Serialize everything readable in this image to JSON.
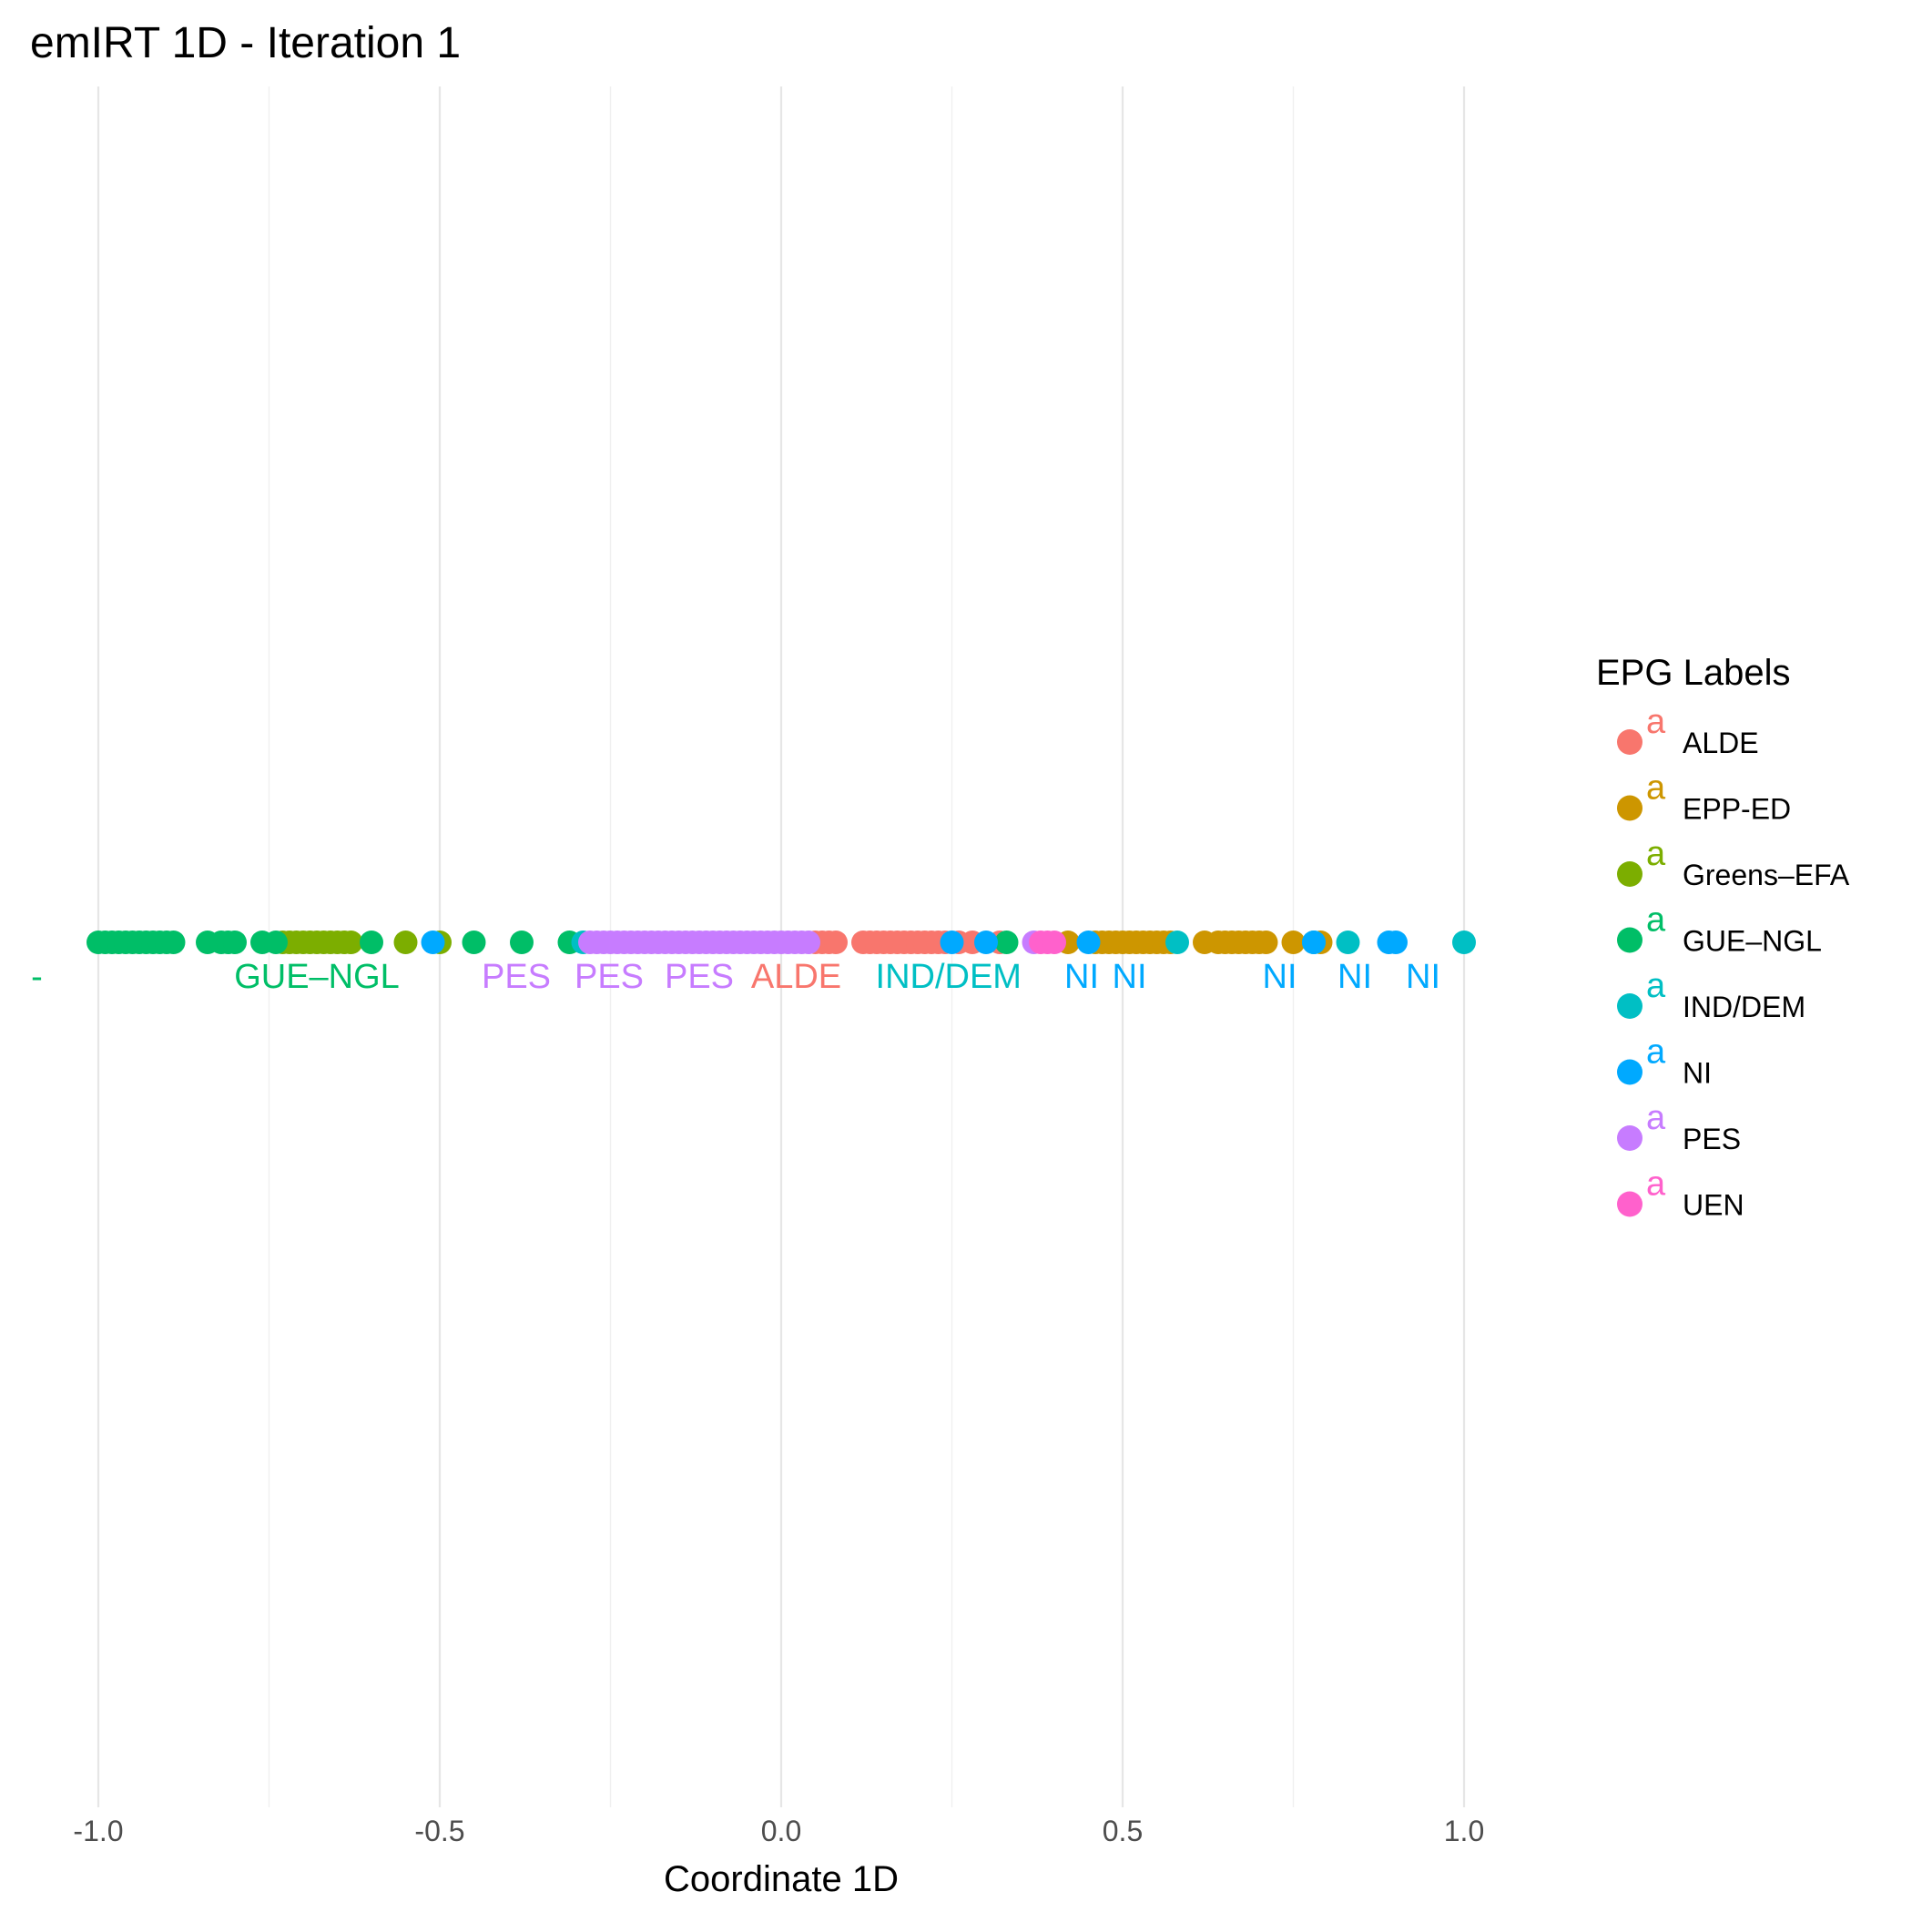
{
  "chart_data": {
    "type": "scatter",
    "title": "emIRT 1D - Iteration 1",
    "xlabel": "Coordinate 1D",
    "ylabel": "",
    "xlim": [
      -1.08,
      1.55
    ],
    "xticks": [
      -1.0,
      -0.5,
      0.0,
      0.5,
      1.0
    ],
    "xtick_labels": [
      "-1.0",
      "-0.5",
      "0.0",
      "0.5",
      "1.0"
    ],
    "grid": "vertical major and minor",
    "legend": {
      "title": "EPG Labels",
      "position": "right",
      "glyph": "a"
    },
    "series": [
      {
        "name": "ALDE",
        "color": "#F8766D",
        "x": [
          0.05,
          0.06,
          0.07,
          0.08,
          0.12,
          0.13,
          0.14,
          0.15,
          0.16,
          0.17,
          0.18,
          0.19,
          0.2,
          0.21,
          0.22,
          0.23,
          0.24,
          0.26,
          0.28,
          0.32
        ]
      },
      {
        "name": "EPP-ED",
        "color": "#CD9600",
        "x": [
          0.42,
          0.46,
          0.47,
          0.48,
          0.49,
          0.5,
          0.51,
          0.52,
          0.53,
          0.54,
          0.55,
          0.56,
          0.57,
          0.62,
          0.64,
          0.65,
          0.66,
          0.67,
          0.68,
          0.69,
          0.7,
          0.71,
          0.75,
          0.79
        ]
      },
      {
        "name": "Greens–EFA",
        "color": "#7CAE00",
        "x": [
          -0.73,
          -0.72,
          -0.71,
          -0.7,
          -0.69,
          -0.68,
          -0.67,
          -0.66,
          -0.65,
          -0.64,
          -0.63,
          -0.55,
          -0.5
        ]
      },
      {
        "name": "GUE–NGL",
        "color": "#00BE67",
        "x": [
          -1.0,
          -0.99,
          -0.98,
          -0.97,
          -0.96,
          -0.95,
          -0.94,
          -0.93,
          -0.92,
          -0.91,
          -0.9,
          -0.89,
          -0.84,
          -0.82,
          -0.81,
          -0.8,
          -0.76,
          -0.74,
          -0.6,
          -0.45,
          -0.38,
          -0.31,
          0.33
        ]
      },
      {
        "name": "IND/DEM",
        "color": "#00BFC4",
        "x": [
          -0.29,
          0.58,
          0.78,
          0.83,
          1.0
        ]
      },
      {
        "name": "NI",
        "color": "#00A9FF",
        "x": [
          -0.51,
          0.25,
          0.3,
          0.45,
          0.78,
          0.89,
          0.9
        ]
      },
      {
        "name": "PES",
        "color": "#C77CFF",
        "x": [
          -0.28,
          -0.27,
          -0.26,
          -0.25,
          -0.24,
          -0.23,
          -0.22,
          -0.21,
          -0.2,
          -0.19,
          -0.18,
          -0.17,
          -0.16,
          -0.15,
          -0.14,
          -0.13,
          -0.12,
          -0.11,
          -0.1,
          -0.09,
          -0.08,
          -0.07,
          -0.06,
          -0.05,
          -0.04,
          -0.03,
          -0.02,
          -0.01,
          0.0,
          0.01,
          0.02,
          0.03,
          0.04,
          0.37
        ]
      },
      {
        "name": "UEN",
        "color": "#FF61CC",
        "x": [
          0.38,
          0.39,
          0.4
        ]
      }
    ],
    "annotations": [
      {
        "text": "-",
        "x": -1.09,
        "color": "#00BE67"
      },
      {
        "text": "GUE–NGL",
        "x": -0.68,
        "color": "#00BE67"
      },
      {
        "text": "PES",
        "x": -0.388,
        "color": "#C77CFF"
      },
      {
        "text": "PES",
        "x": -0.252,
        "color": "#C77CFF"
      },
      {
        "text": "PES",
        "x": -0.12,
        "color": "#C77CFF"
      },
      {
        "text": "ALDE",
        "x": 0.022,
        "color": "#F8766D"
      },
      {
        "text": "IND/DEM",
        "x": 0.245,
        "color": "#00BFC4"
      },
      {
        "text": "NI",
        "x": 0.44,
        "color": "#00A9FF"
      },
      {
        "text": "NI",
        "x": 0.51,
        "color": "#00A9FF"
      },
      {
        "text": "NI",
        "x": 0.73,
        "color": "#00A9FF"
      },
      {
        "text": "NI",
        "x": 0.84,
        "color": "#00A9FF"
      },
      {
        "text": "NI",
        "x": 0.94,
        "color": "#00A9FF"
      }
    ]
  }
}
